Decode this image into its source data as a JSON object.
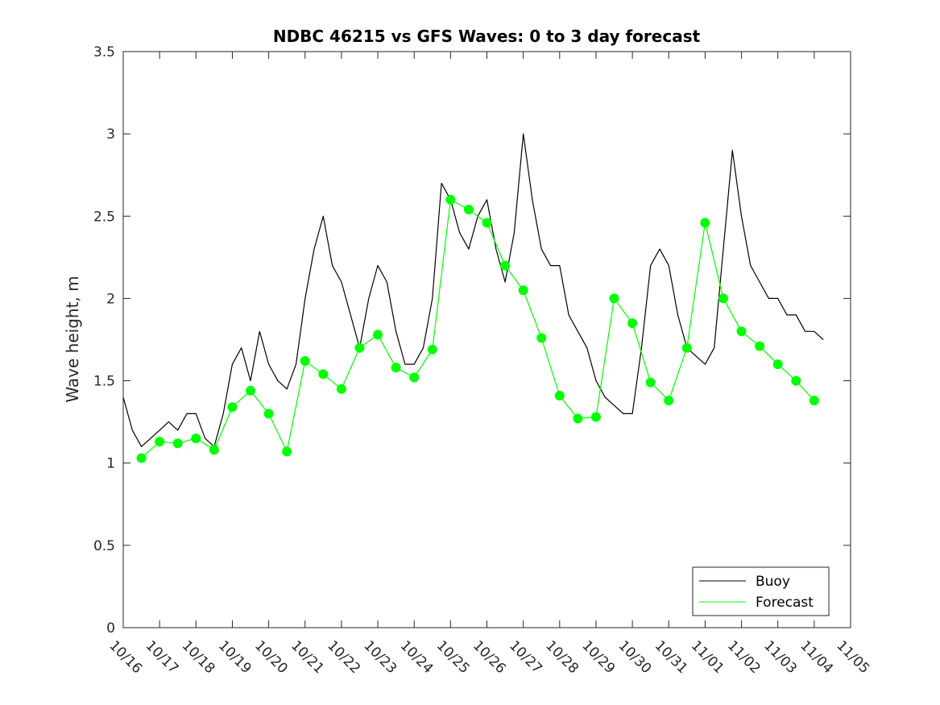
{
  "chart_data": {
    "type": "line",
    "title": "NDBC 46215 vs GFS Waves: 0 to 3 day forecast",
    "xlabel": "",
    "ylabel": "Wave height, m",
    "ylim": [
      0,
      3.5
    ],
    "yticks": [
      0,
      0.5,
      1,
      1.5,
      2,
      2.5,
      3,
      3.5
    ],
    "ytick_labels": [
      "0",
      "0.5",
      "1",
      "1.5",
      "2",
      "2.5",
      "3",
      "3.5"
    ],
    "xlim": [
      0,
      20
    ],
    "xticks": [
      0,
      1,
      2,
      3,
      4,
      5,
      6,
      7,
      8,
      9,
      10,
      11,
      12,
      13,
      14,
      15,
      16,
      17,
      18,
      19,
      20
    ],
    "xtick_labels": [
      "10/16",
      "10/17",
      "10/18",
      "10/19",
      "10/20",
      "10/21",
      "10/22",
      "10/23",
      "10/24",
      "10/25",
      "10/26",
      "10/27",
      "10/28",
      "10/29",
      "10/30",
      "10/31",
      "11/01",
      "11/02",
      "11/03",
      "11/04",
      "11/05"
    ],
    "legend": {
      "position": "bottom-right",
      "entries": [
        "Buoy",
        "Forecast"
      ]
    },
    "colors": {
      "buoy": "#000000",
      "forecast": "#00ff00",
      "axes": "#262626"
    },
    "series": [
      {
        "name": "Buoy",
        "color": "#000000",
        "x": [
          0,
          0.25,
          0.5,
          0.75,
          1,
          1.25,
          1.5,
          1.75,
          2,
          2.25,
          2.5,
          2.75,
          3,
          3.25,
          3.5,
          3.75,
          4,
          4.25,
          4.5,
          4.75,
          5,
          5.25,
          5.5,
          5.75,
          6,
          6.25,
          6.5,
          6.75,
          7,
          7.25,
          7.5,
          7.75,
          8,
          8.25,
          8.5,
          8.75,
          9,
          9.25,
          9.5,
          9.75,
          10,
          10.25,
          10.5,
          10.75,
          11,
          11.25,
          11.5,
          11.75,
          12,
          12.25,
          12.5,
          12.75,
          13,
          13.25,
          13.5,
          13.75,
          14,
          14.25,
          14.5,
          14.75,
          15,
          15.25,
          15.5,
          15.75,
          16,
          16.25,
          16.5,
          16.75,
          17,
          17.25,
          17.5,
          17.75,
          18,
          18.25,
          18.5,
          18.75,
          19,
          19.25
        ],
        "values": [
          1.4,
          1.2,
          1.1,
          1.15,
          1.2,
          1.25,
          1.2,
          1.3,
          1.3,
          1.15,
          1.1,
          1.3,
          1.6,
          1.7,
          1.5,
          1.8,
          1.6,
          1.5,
          1.45,
          1.6,
          2.0,
          2.3,
          2.5,
          2.2,
          2.1,
          1.9,
          1.7,
          2.0,
          2.2,
          2.1,
          1.8,
          1.6,
          1.6,
          1.7,
          2.0,
          2.7,
          2.6,
          2.4,
          2.3,
          2.5,
          2.6,
          2.3,
          2.1,
          2.4,
          3.0,
          2.6,
          2.3,
          2.2,
          2.2,
          1.9,
          1.8,
          1.7,
          1.5,
          1.4,
          1.35,
          1.3,
          1.3,
          1.7,
          2.2,
          2.3,
          2.2,
          1.9,
          1.7,
          1.65,
          1.6,
          1.7,
          2.3,
          2.9,
          2.5,
          2.2,
          2.1,
          2.0,
          2.0,
          1.9,
          1.9,
          1.8,
          1.8,
          1.75
        ]
      },
      {
        "name": "Forecast",
        "color": "#00ff00",
        "x": [
          0.5,
          1,
          1.5,
          2,
          2.5,
          3,
          3.5,
          4,
          4.5,
          5,
          5.5,
          6,
          6.5,
          7,
          7.5,
          8,
          8.5,
          9,
          9.5,
          10,
          10.5,
          11,
          11.5,
          12,
          12.5,
          13,
          13.5,
          14,
          14.5,
          15,
          15.5,
          16,
          16.5,
          17,
          17.5,
          18,
          18.5,
          19
        ],
        "values": [
          1.03,
          1.13,
          1.12,
          1.15,
          1.08,
          1.34,
          1.44,
          1.3,
          1.07,
          1.62,
          1.54,
          1.45,
          1.7,
          1.78,
          1.58,
          1.52,
          1.69,
          2.6,
          2.54,
          2.46,
          2.2,
          2.05,
          1.76,
          1.41,
          1.27,
          1.28,
          2.0,
          1.85,
          1.49,
          1.38,
          1.7,
          2.46,
          2.0,
          1.8,
          1.71,
          1.6,
          1.5,
          1.38
        ]
      }
    ]
  }
}
